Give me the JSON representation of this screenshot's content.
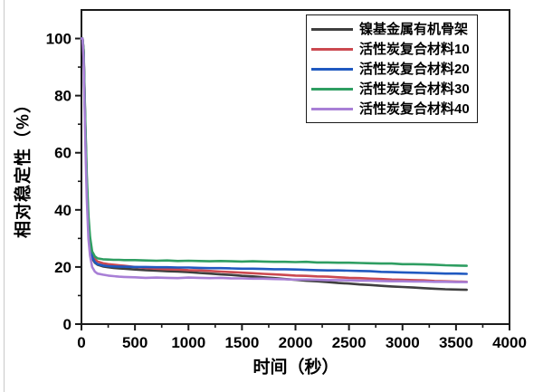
{
  "figure": {
    "background": "#ffffff",
    "frame_color": "#1a1a1a",
    "text_color": "#000000"
  },
  "chart_data": {
    "type": "line",
    "title": "",
    "xlabel": "时间（秒）",
    "ylabel": "相对稳定性（%）",
    "xlim": [
      0,
      4000
    ],
    "ylim": [
      0,
      110
    ],
    "x_ticks": [
      0,
      500,
      1000,
      1500,
      2000,
      2500,
      3000,
      3500,
      4000
    ],
    "y_ticks": [
      0,
      20,
      40,
      60,
      80,
      100
    ],
    "x_minor_step": 250,
    "y_minor_step": 10,
    "grid": false,
    "legend_position": "top-right-inside",
    "x": [
      0,
      10,
      20,
      35,
      50,
      65,
      80,
      100,
      125,
      150,
      200,
      250,
      300,
      350,
      400,
      500,
      600,
      700,
      800,
      900,
      1000,
      1100,
      1200,
      1300,
      1400,
      1500,
      1600,
      1700,
      1800,
      1900,
      2000,
      2100,
      2200,
      2300,
      2400,
      2500,
      2600,
      2700,
      2800,
      2900,
      3000,
      3100,
      3200,
      3300,
      3400,
      3500,
      3600
    ],
    "series": [
      {
        "name": "镍基金属有机骨架",
        "color": "#3f3f3f",
        "values": [
          100,
          100,
          95,
          70,
          48,
          34,
          27,
          23,
          21.5,
          20.8,
          20.2,
          19.9,
          19.7,
          19.5,
          19.4,
          19.1,
          18.9,
          18.7,
          18.5,
          18.4,
          18.2,
          17.9,
          17.7,
          17.4,
          17.2,
          16.9,
          16.7,
          16.4,
          16.1,
          15.8,
          15.5,
          15.2,
          15.0,
          14.7,
          14.4,
          14.2,
          13.9,
          13.7,
          13.4,
          13.2,
          13.0,
          12.8,
          12.6,
          12.4,
          12.2,
          12.1,
          12.0
        ]
      },
      {
        "name": "活性炭复合材料10",
        "color": "#cb4950",
        "values": [
          100,
          100,
          96,
          72,
          50,
          36,
          29,
          24.5,
          22.7,
          21.9,
          21.3,
          21.0,
          20.8,
          20.6,
          20.4,
          20.0,
          19.7,
          19.4,
          19.2,
          19.1,
          18.9,
          18.8,
          18.6,
          18.4,
          18.2,
          18.0,
          17.8,
          17.6,
          17.4,
          17.2,
          17.0,
          16.9,
          16.7,
          16.6,
          16.4,
          16.2,
          16.1,
          15.9,
          15.8,
          15.6,
          15.5,
          15.4,
          15.3,
          15.1,
          15.0,
          14.9,
          14.8
        ]
      },
      {
        "name": "活性炭复合材料20",
        "color": "#2059c0",
        "values": [
          100,
          100,
          95,
          71,
          49,
          35,
          28,
          23.5,
          21.7,
          21.0,
          20.5,
          20.3,
          20.2,
          20.1,
          20.1,
          20.0,
          20.0,
          19.9,
          19.9,
          19.8,
          19.8,
          19.7,
          19.6,
          19.6,
          19.5,
          19.4,
          19.4,
          19.3,
          19.2,
          19.2,
          19.1,
          19.0,
          18.9,
          18.8,
          18.8,
          18.7,
          18.6,
          18.5,
          18.3,
          18.2,
          18.1,
          18.0,
          17.9,
          17.8,
          17.7,
          17.7,
          17.6
        ]
      },
      {
        "name": "活性炭复合材料30",
        "color": "#2f9e62",
        "values": [
          100,
          100,
          96,
          73,
          52,
          38,
          30.5,
          25.5,
          23.7,
          23.0,
          22.7,
          22.6,
          22.5,
          22.5,
          22.4,
          22.4,
          22.3,
          22.2,
          22.3,
          22.1,
          22.2,
          22.1,
          22.0,
          22.1,
          22.0,
          21.9,
          22.0,
          21.9,
          21.8,
          21.8,
          21.7,
          21.8,
          21.6,
          21.6,
          21.5,
          21.5,
          21.4,
          21.3,
          21.2,
          21.2,
          21.0,
          21.0,
          20.9,
          20.8,
          20.6,
          20.5,
          20.4
        ]
      },
      {
        "name": "活性炭复合材料40",
        "color": "#a87fd6",
        "values": [
          100,
          100,
          93,
          66,
          44,
          30,
          24,
          20.0,
          18.4,
          17.7,
          17.3,
          17.0,
          16.8,
          16.6,
          16.5,
          16.4,
          16.2,
          16.3,
          16.2,
          16.1,
          16.3,
          16.2,
          16.1,
          16.2,
          16.0,
          16.0,
          15.9,
          15.9,
          15.8,
          15.7,
          15.6,
          15.6,
          15.5,
          15.4,
          15.4,
          15.3,
          15.2,
          15.2,
          15.1,
          15.0,
          15.0,
          14.9,
          14.9,
          14.8,
          14.8,
          14.7,
          14.7
        ]
      }
    ]
  }
}
